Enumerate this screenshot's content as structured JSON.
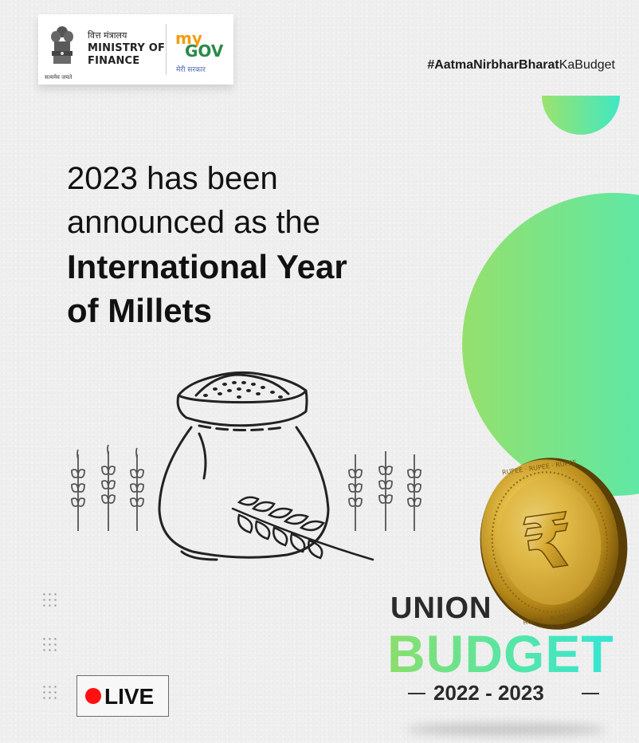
{
  "header": {
    "ministry_hindi": "वित्त मंत्रालय",
    "ministry_line1": "MINISTRY OF",
    "ministry_line2": "FINANCE",
    "emblem_caption": "सत्यमेव जयते",
    "mygov_my": "my",
    "mygov_gov": "GOV",
    "mygov_hindi": "मेरी सरकार",
    "hashtag_bold": "#AatmaNirbharBharat",
    "hashtag_regular": "KaBudget"
  },
  "headline": {
    "line1": "2023 has been",
    "line2": "announced as the",
    "line3": "International Year",
    "line4": "of Millets"
  },
  "coin": {
    "symbol": "₹",
    "rim_text": "RUPEE"
  },
  "badge": {
    "live": "LIVE"
  },
  "branding": {
    "union": "UNION",
    "budget": "BUDGET",
    "year": "2022 - 2023"
  },
  "colors": {
    "accent_green": "#8bde6b",
    "accent_teal": "#33e6d6",
    "live_red": "#ff1111",
    "coin_gold": "#c9a227"
  },
  "icons": [
    "national-emblem-icon",
    "mygov-logo",
    "millet-sack-icon",
    "wheat-stalk-icon",
    "rupee-coin-icon",
    "live-dot-icon",
    "dot-grid-icon"
  ]
}
